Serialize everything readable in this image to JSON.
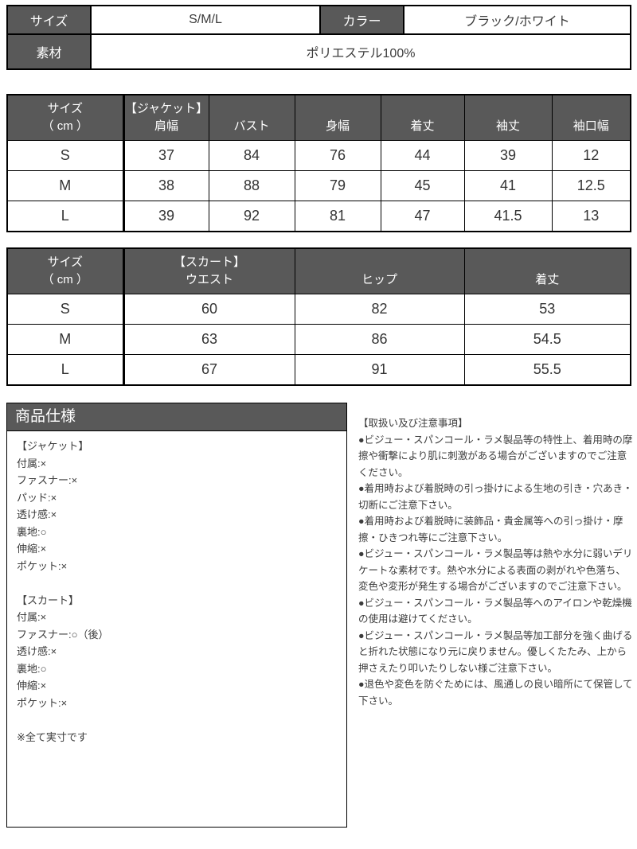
{
  "colors": {
    "header_bg": "#595959",
    "header_text": "#ffffff",
    "border": "#000000",
    "body_text": "#3c3c3c"
  },
  "info_table": {
    "size_label": "サイズ",
    "size_value": "S/M/L",
    "color_label": "カラー",
    "color_value": "ブラック/ホワイト",
    "material_label": "素材",
    "material_value": "ポリエステル100%"
  },
  "jacket_table": {
    "headers": [
      "サイズ\n（ cm ）",
      "【ジャケット】\n肩幅",
      "バスト",
      "身幅",
      "着丈",
      "袖丈",
      "袖口幅"
    ],
    "rows": [
      [
        "S",
        "37",
        "84",
        "76",
        "44",
        "39",
        "12"
      ],
      [
        "M",
        "38",
        "88",
        "79",
        "45",
        "41",
        "12.5"
      ],
      [
        "L",
        "39",
        "92",
        "81",
        "47",
        "41.5",
        "13"
      ]
    ]
  },
  "skirt_table": {
    "headers": [
      "サイズ\n（ cm ）",
      "【スカート】\nウエスト",
      "ヒップ",
      "着丈"
    ],
    "rows": [
      [
        "S",
        "60",
        "82",
        "53"
      ],
      [
        "M",
        "63",
        "86",
        "54.5"
      ],
      [
        "L",
        "67",
        "91",
        "55.5"
      ]
    ]
  },
  "spec_box": {
    "title": "商品仕様",
    "sections": [
      {
        "heading": "【ジャケット】",
        "lines": [
          "付属:×",
          "ファスナー:×",
          "パッド:×",
          "透け感:×",
          "裏地:○",
          "伸縮:×",
          "ポケット:×"
        ]
      },
      {
        "heading": "【スカート】",
        "lines": [
          "付属:×",
          "ファスナー:○（後）",
          "透け感:×",
          "裏地:○",
          "伸縮:×",
          "ポケット:×"
        ]
      }
    ],
    "footnote": "※全て実寸です"
  },
  "notes": {
    "heading": "【取扱い及び注意事項】",
    "items": [
      "●ビジュー・スパンコール・ラメ製品等の特性上、着用時の摩擦や衝撃により肌に刺激がある場合がございますのでご注意ください。",
      "●着用時および着脱時の引っ掛けによる生地の引き・穴あき・切断にご注意下さい。",
      "●着用時および着脱時に装飾品・貴金属等への引っ掛け・摩擦・ひきつれ等にご注意下さい。",
      "●ビジュー・スパンコール・ラメ製品等は熱や水分に弱いデリケートな素材です。熱や水分による表面の剥がれや色落ち、変色や変形が発生する場合がございますのでご注意下さい。",
      "●ビジュー・スパンコール・ラメ製品等へのアイロンや乾燥機の使用は避けてください。",
      "●ビジュー・スパンコール・ラメ製品等加工部分を強く曲げると折れた状態になり元に戻りません。優しくたたみ、上から押さえたり叩いたりしない様ご注意下さい。",
      "●退色や変色を防ぐためには、風通しの良い暗所にて保管して下さい。"
    ]
  }
}
